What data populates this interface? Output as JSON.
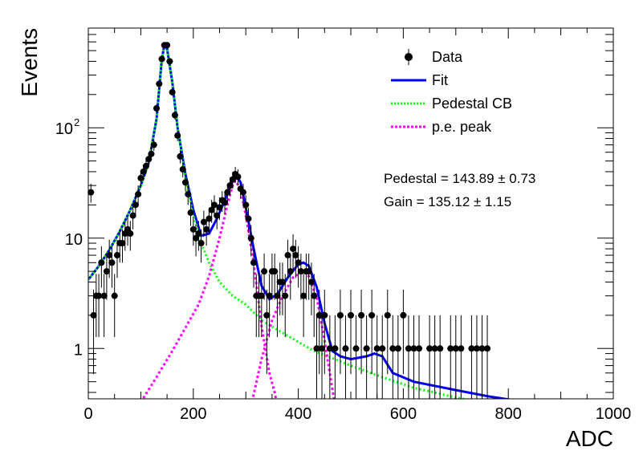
{
  "chart_data": {
    "type": "scatter",
    "xlabel": "ADC",
    "ylabel": "Events",
    "xlim": [
      0,
      1000
    ],
    "ylim": [
      0.35,
      800
    ],
    "yscale": "log",
    "grid": false,
    "legend_position": "top-right",
    "x_ticks": [
      {
        "value": 0,
        "label": "0"
      },
      {
        "value": 200,
        "label": "200"
      },
      {
        "value": 400,
        "label": "400"
      },
      {
        "value": 600,
        "label": "600"
      },
      {
        "value": 800,
        "label": "800"
      },
      {
        "value": 1000,
        "label": "1000"
      }
    ],
    "y_ticks": [
      {
        "value": 1,
        "label": "1",
        "sup": ""
      },
      {
        "value": 10,
        "label": "10",
        "sup": ""
      },
      {
        "value": 100,
        "label": "10",
        "sup": "2"
      }
    ],
    "legend": [
      {
        "label": "Data",
        "style": "marker",
        "color": "#000000"
      },
      {
        "label": "Fit",
        "style": "solid",
        "color": "#0000ff"
      },
      {
        "label": "Pedestal CB",
        "style": "dotted",
        "color": "#00ff00"
      },
      {
        "label": "p.e. peak",
        "style": "dashed",
        "color": "#ff00ff"
      }
    ],
    "annotations": [
      {
        "name": "pedestal",
        "text": "Pedestal = 143.89 ± 0.73"
      },
      {
        "name": "gain",
        "text": "Gain = 135.12 ± 1.15"
      }
    ],
    "series": [
      {
        "name": "Data",
        "color": "#000000",
        "points": [
          [
            5,
            26
          ],
          [
            10,
            2
          ],
          [
            15,
            3
          ],
          [
            20,
            3
          ],
          [
            25,
            6
          ],
          [
            30,
            3
          ],
          [
            35,
            5
          ],
          [
            40,
            7
          ],
          [
            45,
            6
          ],
          [
            50,
            3
          ],
          [
            55,
            7
          ],
          [
            60,
            9
          ],
          [
            65,
            9
          ],
          [
            70,
            11
          ],
          [
            75,
            12
          ],
          [
            80,
            11
          ],
          [
            85,
            16
          ],
          [
            90,
            20
          ],
          [
            95,
            25
          ],
          [
            100,
            35
          ],
          [
            105,
            40
          ],
          [
            110,
            45
          ],
          [
            115,
            52
          ],
          [
            120,
            58
          ],
          [
            125,
            70
          ],
          [
            130,
            150
          ],
          [
            135,
            250
          ],
          [
            140,
            420
          ],
          [
            145,
            560
          ],
          [
            150,
            560
          ],
          [
            155,
            400
          ],
          [
            160,
            210
          ],
          [
            165,
            130
          ],
          [
            170,
            85
          ],
          [
            175,
            55
          ],
          [
            180,
            42
          ],
          [
            185,
            32
          ],
          [
            190,
            25
          ],
          [
            195,
            17
          ],
          [
            200,
            12
          ],
          [
            205,
            10
          ],
          [
            210,
            11
          ],
          [
            215,
            9
          ],
          [
            220,
            14
          ],
          [
            225,
            12
          ],
          [
            230,
            15
          ],
          [
            235,
            18
          ],
          [
            240,
            20
          ],
          [
            245,
            16
          ],
          [
            250,
            19
          ],
          [
            255,
            22
          ],
          [
            260,
            21
          ],
          [
            265,
            26
          ],
          [
            270,
            30
          ],
          [
            275,
            34
          ],
          [
            280,
            38
          ],
          [
            285,
            36
          ],
          [
            290,
            28
          ],
          [
            295,
            26
          ],
          [
            300,
            20
          ],
          [
            305,
            15
          ],
          [
            310,
            10
          ],
          [
            315,
            6
          ],
          [
            320,
            3
          ],
          [
            325,
            3
          ],
          [
            330,
            3
          ],
          [
            335,
            5
          ],
          [
            340,
            2
          ],
          [
            345,
            3
          ],
          [
            350,
            5
          ],
          [
            355,
            5
          ],
          [
            360,
            3
          ],
          [
            365,
            4
          ],
          [
            370,
            4
          ],
          [
            375,
            3
          ],
          [
            380,
            7
          ],
          [
            385,
            5
          ],
          [
            390,
            8
          ],
          [
            395,
            7
          ],
          [
            400,
            6
          ],
          [
            405,
            5
          ],
          [
            410,
            3
          ],
          [
            415,
            5
          ],
          [
            420,
            5
          ],
          [
            425,
            4
          ],
          [
            430,
            3
          ],
          [
            435,
            1
          ],
          [
            440,
            2
          ],
          [
            445,
            1
          ],
          [
            450,
            2
          ],
          [
            460,
            1
          ],
          [
            470,
            1
          ],
          [
            480,
            2
          ],
          [
            490,
            1
          ],
          [
            500,
            2
          ],
          [
            510,
            1
          ],
          [
            520,
            2
          ],
          [
            530,
            1
          ],
          [
            540,
            2
          ],
          [
            550,
            1
          ],
          [
            560,
            1
          ],
          [
            570,
            2
          ],
          [
            580,
            1
          ],
          [
            590,
            1
          ],
          [
            600,
            2
          ],
          [
            610,
            1
          ],
          [
            620,
            1
          ],
          [
            630,
            1
          ],
          [
            650,
            1
          ],
          [
            660,
            1
          ],
          [
            670,
            1
          ],
          [
            690,
            1
          ],
          [
            700,
            1
          ],
          [
            710,
            1
          ],
          [
            730,
            1
          ],
          [
            740,
            1
          ],
          [
            750,
            1
          ],
          [
            760,
            1
          ]
        ]
      },
      {
        "name": "Fit",
        "color": "#0000ff",
        "points": [
          [
            0,
            4.2
          ],
          [
            20,
            5.6
          ],
          [
            40,
            7.8
          ],
          [
            60,
            11.5
          ],
          [
            80,
            18
          ],
          [
            100,
            30
          ],
          [
            115,
            48
          ],
          [
            130,
            120
          ],
          [
            140,
            420
          ],
          [
            145,
            560
          ],
          [
            150,
            520
          ],
          [
            160,
            260
          ],
          [
            170,
            100
          ],
          [
            185,
            38
          ],
          [
            200,
            18
          ],
          [
            215,
            10.5
          ],
          [
            230,
            11
          ],
          [
            245,
            15
          ],
          [
            260,
            22
          ],
          [
            275,
            34
          ],
          [
            280,
            38
          ],
          [
            290,
            32
          ],
          [
            300,
            19
          ],
          [
            315,
            8
          ],
          [
            330,
            3.7
          ],
          [
            345,
            2.8
          ],
          [
            360,
            3.1
          ],
          [
            380,
            4.4
          ],
          [
            400,
            5.8
          ],
          [
            410,
            6
          ],
          [
            420,
            5.6
          ],
          [
            435,
            3.6
          ],
          [
            450,
            1.7
          ],
          [
            465,
            0.95
          ],
          [
            480,
            0.85
          ],
          [
            500,
            0.8
          ],
          [
            530,
            0.85
          ],
          [
            545,
            0.9
          ],
          [
            560,
            0.85
          ],
          [
            580,
            0.6
          ],
          [
            620,
            0.5
          ],
          [
            700,
            0.42
          ],
          [
            760,
            0.37
          ],
          [
            810,
            0.34
          ]
        ]
      },
      {
        "name": "Pedestal CB",
        "color": "#00ff00",
        "points": [
          [
            0,
            4.2
          ],
          [
            20,
            5.6
          ],
          [
            40,
            7.8
          ],
          [
            60,
            11.5
          ],
          [
            80,
            18
          ],
          [
            100,
            30
          ],
          [
            115,
            48
          ],
          [
            130,
            120
          ],
          [
            140,
            420
          ],
          [
            145,
            560
          ],
          [
            150,
            520
          ],
          [
            160,
            260
          ],
          [
            170,
            100
          ],
          [
            185,
            35
          ],
          [
            200,
            16
          ],
          [
            215,
            9
          ],
          [
            230,
            6
          ],
          [
            250,
            4
          ],
          [
            275,
            3
          ],
          [
            300,
            2.5
          ],
          [
            330,
            1.8
          ],
          [
            380,
            1.3
          ],
          [
            430,
            0.95
          ],
          [
            500,
            0.7
          ],
          [
            560,
            0.55
          ],
          [
            620,
            0.44
          ],
          [
            700,
            0.36
          ],
          [
            730,
            0.34
          ]
        ]
      },
      {
        "name": "p.e. peak",
        "color": "#ff00ff",
        "points": [
          [
            95,
            0.3
          ],
          [
            130,
            0.55
          ],
          [
            160,
            0.95
          ],
          [
            190,
            1.7
          ],
          [
            210,
            2.5
          ],
          [
            230,
            4.5
          ],
          [
            250,
            10
          ],
          [
            265,
            20
          ],
          [
            275,
            30
          ],
          [
            280,
            33
          ],
          [
            290,
            28
          ],
          [
            300,
            16
          ],
          [
            315,
            6
          ],
          [
            330,
            1.6
          ],
          [
            345,
            0.6
          ],
          [
            355,
            0.4
          ],
          [
            360,
            0.3
          ]
        ]
      },
      {
        "name": "p.e. peak",
        "color": "#ff00ff",
        "points": [
          [
            310,
            0.3
          ],
          [
            330,
            0.8
          ],
          [
            350,
            1.8
          ],
          [
            370,
            3
          ],
          [
            390,
            4.4
          ],
          [
            410,
            5
          ],
          [
            420,
            4.5
          ],
          [
            435,
            2.9
          ],
          [
            450,
            1.2
          ],
          [
            460,
            0.6
          ],
          [
            470,
            0.3
          ]
        ]
      }
    ]
  }
}
